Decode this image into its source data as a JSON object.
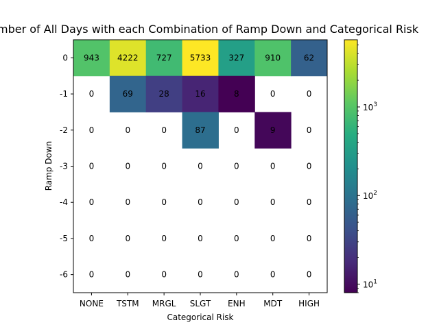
{
  "chart_data": {
    "type": "heatmap",
    "title": "Number of All Days with each Combination of Ramp Down and Categorical Risk",
    "xlabel": "Categorical Risk",
    "ylabel": "Ramp Down",
    "x_categories": [
      "NONE",
      "TSTM",
      "MRGL",
      "SLGT",
      "ENH",
      "MDT",
      "HIGH"
    ],
    "y_categories": [
      "0",
      "-1",
      "-2",
      "-3",
      "-4",
      "-5",
      "-6"
    ],
    "values": [
      [
        943,
        4222,
        727,
        5733,
        327,
        910,
        62
      ],
      [
        0,
        69,
        28,
        16,
        8,
        0,
        0
      ],
      [
        0,
        0,
        0,
        87,
        0,
        9,
        0
      ],
      [
        0,
        0,
        0,
        0,
        0,
        0,
        0
      ],
      [
        0,
        0,
        0,
        0,
        0,
        0,
        0
      ],
      [
        0,
        0,
        0,
        0,
        0,
        0,
        0
      ],
      [
        0,
        0,
        0,
        0,
        0,
        0,
        0
      ]
    ],
    "zero_cells": "blank",
    "colormap": "viridis",
    "color_scale": "log",
    "color_range": [
      8,
      5733
    ],
    "colorbar_ticks": [
      {
        "exponent": "1",
        "value": 10
      },
      {
        "exponent": "2",
        "value": 100
      },
      {
        "exponent": "3",
        "value": 1000
      }
    ],
    "colorbar_tick_base": "10"
  }
}
